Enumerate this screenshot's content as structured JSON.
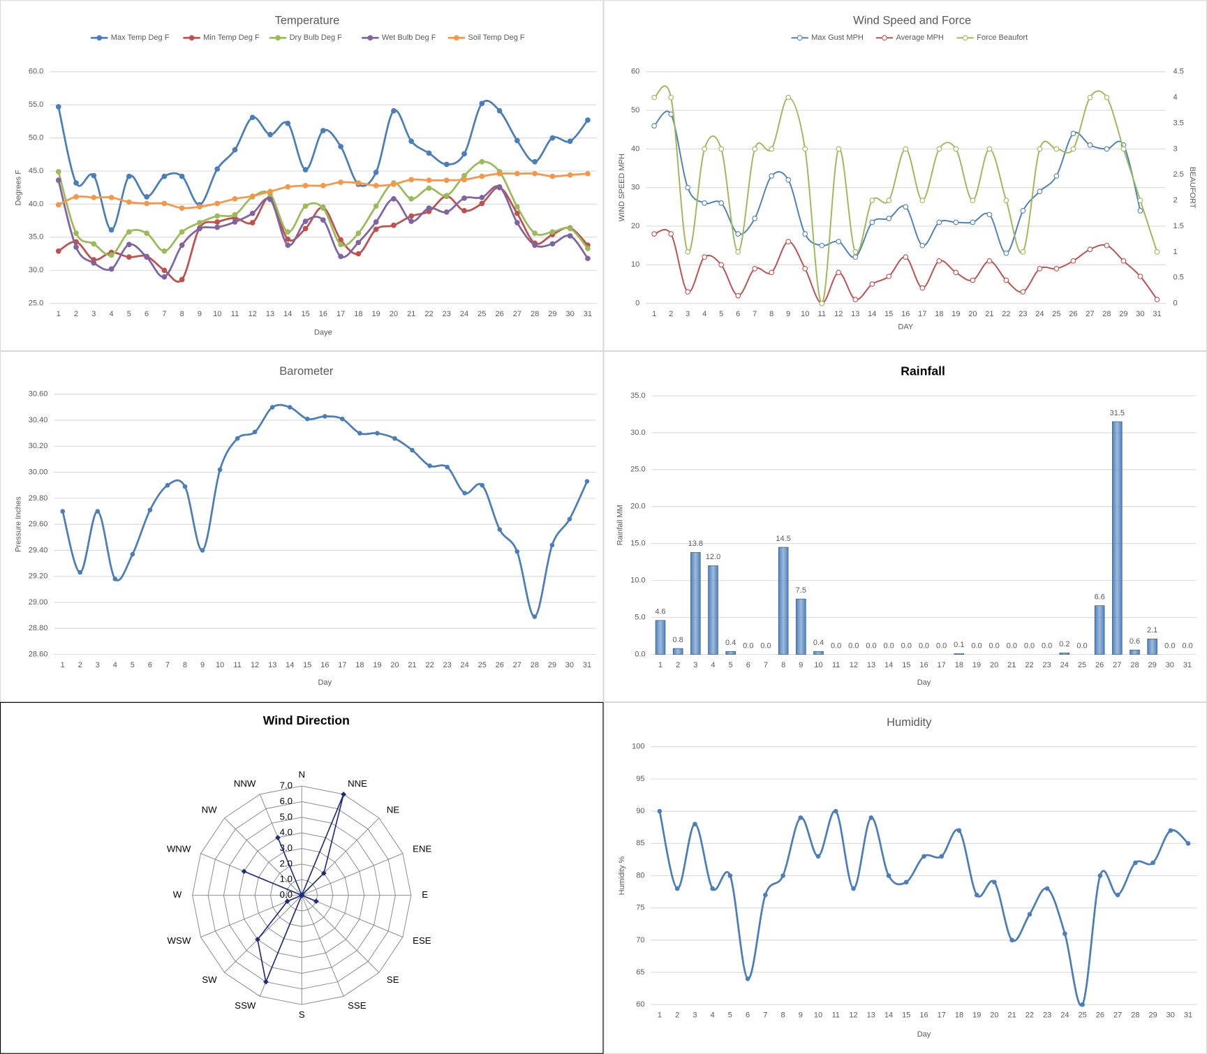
{
  "chart_data": [
    {
      "type": "line",
      "title": "Temperature",
      "xlabel": "Daye",
      "ylabel": "Degrees F",
      "categories": [
        "1",
        "2",
        "3",
        "4",
        "5",
        "6",
        "7",
        "8",
        "9",
        "10",
        "11",
        "12",
        "13",
        "14",
        "15",
        "16",
        "17",
        "18",
        "19",
        "20",
        "21",
        "22",
        "23",
        "24",
        "25",
        "26",
        "27",
        "28",
        "29",
        "30",
        "31"
      ],
      "ylim": [
        25,
        60
      ],
      "yticks": [
        {
          "value": 25,
          "label": "25.0"
        },
        {
          "value": 30,
          "label": "30.0"
        },
        {
          "value": 35,
          "label": "35.0"
        },
        {
          "value": 40,
          "label": "40.0"
        },
        {
          "value": 45,
          "label": "45.0"
        },
        {
          "value": 50,
          "label": "50.0"
        },
        {
          "value": 55,
          "label": "55.0"
        },
        {
          "value": 60,
          "label": "60.0"
        }
      ],
      "grid": true,
      "legend": "top",
      "series": [
        {
          "name": "Max Temp Deg F",
          "color": "#4a7ebb",
          "values": [
            54.7,
            43.2,
            44.3,
            36.1,
            44.2,
            41.1,
            44.2,
            44.2,
            39.9,
            45.3,
            48.2,
            53.1,
            50.5,
            52.2,
            45.2,
            51.1,
            48.7,
            43.0,
            44.8,
            54.1,
            49.5,
            47.7,
            46.0,
            47.6,
            55.2,
            54.1,
            49.6,
            46.4,
            50.0,
            49.5,
            52.7
          ]
        },
        {
          "name": "Min Temp Deg F",
          "color": "#c0504d",
          "values": [
            32.9,
            34.3,
            31.6,
            32.7,
            32.0,
            32.1,
            30.0,
            28.6,
            36.4,
            37.3,
            37.9,
            37.2,
            41.0,
            34.7,
            36.3,
            39.5,
            34.6,
            32.5,
            36.2,
            36.8,
            38.2,
            38.9,
            41.2,
            39.0,
            40.1,
            42.5,
            38.6,
            34.1,
            35.4,
            36.4,
            33.8
          ]
        },
        {
          "name": "Dry Bulb Deg F",
          "color": "#9bbb59",
          "values": [
            44.9,
            35.6,
            34.0,
            32.3,
            35.8,
            35.6,
            32.9,
            35.8,
            37.2,
            38.2,
            38.4,
            41.1,
            41.5,
            35.8,
            39.7,
            39.4,
            33.9,
            35.6,
            39.7,
            43.2,
            40.8,
            42.4,
            41.3,
            44.3,
            46.4,
            44.9,
            39.6,
            35.6,
            35.8,
            36.3,
            33.3
          ]
        },
        {
          "name": "Wet Bulb Deg F",
          "color": "#8064a2",
          "values": [
            43.6,
            33.5,
            31.1,
            30.2,
            33.9,
            32.0,
            29.0,
            33.8,
            36.3,
            36.5,
            37.3,
            38.6,
            40.7,
            33.8,
            37.4,
            37.6,
            32.1,
            34.2,
            37.3,
            40.8,
            37.4,
            39.4,
            38.8,
            40.9,
            41.0,
            42.6,
            37.2,
            33.8,
            34.0,
            35.2,
            31.8
          ]
        },
        {
          "name": "Soil Temp Deg F",
          "color": "#f79646",
          "values": [
            39.9,
            41.1,
            41.0,
            41.0,
            40.3,
            40.1,
            40.1,
            39.4,
            39.6,
            40.1,
            40.8,
            41.2,
            41.9,
            42.6,
            42.8,
            42.8,
            43.3,
            43.2,
            42.8,
            43.0,
            43.7,
            43.6,
            43.6,
            43.7,
            44.2,
            44.6,
            44.6,
            44.6,
            44.2,
            44.4,
            44.6
          ]
        }
      ]
    },
    {
      "type": "line",
      "title": "Wind Speed and Force",
      "xlabel": "DAY",
      "ylabel": "WIND SPEED MPH",
      "y2label": "BEAUFORT",
      "categories": [
        "1",
        "2",
        "3",
        "4",
        "5",
        "6",
        "7",
        "8",
        "9",
        "10",
        "11",
        "12",
        "13",
        "14",
        "15",
        "16",
        "17",
        "18",
        "19",
        "20",
        "21",
        "22",
        "23",
        "24",
        "25",
        "26",
        "27",
        "28",
        "29",
        "30",
        "31"
      ],
      "ylim": [
        0,
        60
      ],
      "yticks": [
        0,
        10,
        20,
        30,
        40,
        50,
        60
      ],
      "y2lim": [
        0,
        4.5
      ],
      "y2ticks": [
        0,
        0.5,
        1,
        1.5,
        2,
        2.5,
        3,
        3.5,
        4,
        4.5
      ],
      "grid": true,
      "legend": "top",
      "series": [
        {
          "name": "Max Gust MPH",
          "color": "#4f81bd",
          "values": [
            46,
            49,
            30,
            26,
            26,
            18,
            22,
            33,
            32,
            18,
            15,
            16,
            12,
            21,
            22,
            25,
            15,
            21,
            21,
            21,
            23,
            13,
            24,
            29,
            33,
            44,
            41,
            40,
            41,
            24,
            null
          ]
        },
        {
          "name": "Average MPH",
          "color": "#c0504d",
          "values": [
            18,
            18,
            3,
            12,
            10,
            2,
            9,
            8,
            16,
            9,
            0,
            8,
            1,
            5,
            7,
            12,
            4,
            11,
            8,
            6,
            11,
            6,
            3,
            9,
            9,
            11,
            14,
            15,
            11,
            7,
            1
          ]
        },
        {
          "name": "Force Beaufort",
          "color": "#9bbb59",
          "axis": "y2",
          "values": [
            4,
            4,
            1,
            3,
            3,
            1,
            3,
            3,
            4,
            3,
            0,
            3,
            1,
            2,
            2,
            3,
            2,
            3,
            3,
            2,
            3,
            2,
            1,
            3,
            3,
            3,
            4,
            4,
            3,
            2,
            1
          ]
        }
      ]
    },
    {
      "type": "line",
      "title": "Barometer",
      "xlabel": "Day",
      "ylabel": "Pressure Inches",
      "categories": [
        "1",
        "2",
        "3",
        "4",
        "5",
        "6",
        "7",
        "8",
        "9",
        "10",
        "11",
        "12",
        "13",
        "14",
        "15",
        "16",
        "17",
        "18",
        "19",
        "20",
        "21",
        "22",
        "23",
        "24",
        "25",
        "26",
        "27",
        "28",
        "29",
        "30",
        "31"
      ],
      "ylim": [
        28.6,
        30.6
      ],
      "yticks": [
        {
          "value": 28.6,
          "label": "28.60"
        },
        {
          "value": 28.8,
          "label": "28.80"
        },
        {
          "value": 29.0,
          "label": "29.00"
        },
        {
          "value": 29.2,
          "label": "29.20"
        },
        {
          "value": 29.4,
          "label": "29.40"
        },
        {
          "value": 29.6,
          "label": "29.60"
        },
        {
          "value": 29.8,
          "label": "29.80"
        },
        {
          "value": 30.0,
          "label": "30.00"
        },
        {
          "value": 30.2,
          "label": "30.20"
        },
        {
          "value": 30.4,
          "label": "30.40"
        },
        {
          "value": 30.6,
          "label": "30.60"
        }
      ],
      "grid": true,
      "color": "#4a7ebb",
      "values": [
        29.7,
        29.23,
        29.7,
        29.18,
        29.37,
        29.71,
        29.9,
        29.89,
        29.4,
        30.02,
        30.26,
        30.31,
        30.5,
        30.5,
        30.41,
        30.43,
        30.41,
        30.3,
        30.3,
        30.26,
        30.17,
        30.05,
        30.04,
        29.84,
        29.9,
        29.56,
        29.39,
        28.89,
        29.44,
        29.64,
        29.93
      ]
    },
    {
      "type": "bar",
      "title": "Rainfall",
      "xlabel": "Day",
      "ylabel": "Rainfall MM",
      "categories": [
        "1",
        "2",
        "3",
        "4",
        "5",
        "6",
        "7",
        "8",
        "9",
        "10",
        "11",
        "12",
        "13",
        "14",
        "15",
        "16",
        "17",
        "18",
        "19",
        "20",
        "21",
        "22",
        "23",
        "24",
        "25",
        "26",
        "27",
        "28",
        "29",
        "30",
        "31"
      ],
      "ylim": [
        0,
        35
      ],
      "yticks": [
        {
          "value": 0,
          "label": "0.0"
        },
        {
          "value": 5,
          "label": "5.0"
        },
        {
          "value": 10,
          "label": "10.0"
        },
        {
          "value": 15,
          "label": "15.0"
        },
        {
          "value": 20,
          "label": "20.0"
        },
        {
          "value": 25,
          "label": "25.0"
        },
        {
          "value": 30,
          "label": "30.0"
        },
        {
          "value": 35,
          "label": "35.0"
        }
      ],
      "grid": true,
      "color": "#4f81bd",
      "values": [
        4.6,
        0.8,
        13.8,
        12.0,
        0.4,
        0.0,
        0.0,
        14.5,
        7.5,
        0.4,
        0.0,
        0.0,
        0.0,
        0.0,
        0.0,
        0.0,
        0.0,
        0.1,
        0.0,
        0.0,
        0.0,
        0.0,
        0.0,
        0.2,
        0.0,
        6.6,
        31.5,
        0.6,
        2.1,
        0.0,
        0.0
      ],
      "value_labels": [
        "4.6",
        "0.8",
        "13.8",
        "12.0",
        "0.4",
        "0.0",
        "0.0",
        "14.5",
        "7.5",
        "0.4",
        "0.0",
        "0.0",
        "0.0",
        "0.0",
        "0.0",
        "0.0",
        "0.0",
        "0.1",
        "0.0",
        "0.0",
        "0.0",
        "0.0",
        "0.0",
        "0.2",
        "0.0",
        "6.6",
        "31.5",
        "0.6",
        "2.1",
        "0.0",
        "0.0"
      ]
    },
    {
      "type": "radar",
      "title": "Wind Direction",
      "categories": [
        "N",
        "NNE",
        "NE",
        "ENE",
        "E",
        "ESE",
        "SE",
        "SSE",
        "S",
        "SSW",
        "SW",
        "WSW",
        "W",
        "WNW",
        "NW",
        "NNW"
      ],
      "values": [
        0,
        7,
        2,
        0,
        0,
        1,
        0,
        0,
        0,
        6,
        4,
        1,
        0,
        4,
        0,
        4
      ],
      "rlim": [
        0,
        7
      ],
      "rticks": [
        {
          "value": 0,
          "label": "0.0"
        },
        {
          "value": 1,
          "label": "1.0"
        },
        {
          "value": 2,
          "label": "2.0"
        },
        {
          "value": 3,
          "label": "3.0"
        },
        {
          "value": 4,
          "label": "4.0"
        },
        {
          "value": 5,
          "label": "5.0"
        },
        {
          "value": 6,
          "label": "6.0"
        },
        {
          "value": 7,
          "label": "7.0"
        }
      ],
      "color": "#1f2a80"
    },
    {
      "type": "line",
      "title": "Humidity",
      "xlabel": "Day",
      "ylabel": "Humidity %",
      "categories": [
        "1",
        "2",
        "3",
        "4",
        "5",
        "6",
        "7",
        "8",
        "9",
        "10",
        "11",
        "12",
        "13",
        "14",
        "15",
        "16",
        "17",
        "18",
        "19",
        "20",
        "21",
        "22",
        "23",
        "24",
        "25",
        "26",
        "27",
        "28",
        "29",
        "30",
        "31"
      ],
      "ylim": [
        60,
        100
      ],
      "yticks": [
        60,
        65,
        70,
        75,
        80,
        85,
        90,
        95,
        100
      ],
      "grid": true,
      "color": "#4a7ebb",
      "values": [
        90,
        78,
        88,
        78,
        80,
        64,
        77,
        80,
        89,
        83,
        90,
        78,
        89,
        80,
        79,
        83,
        83,
        87,
        77,
        79,
        70,
        74,
        78,
        71,
        60,
        80,
        77,
        82,
        82,
        87,
        85
      ]
    }
  ]
}
